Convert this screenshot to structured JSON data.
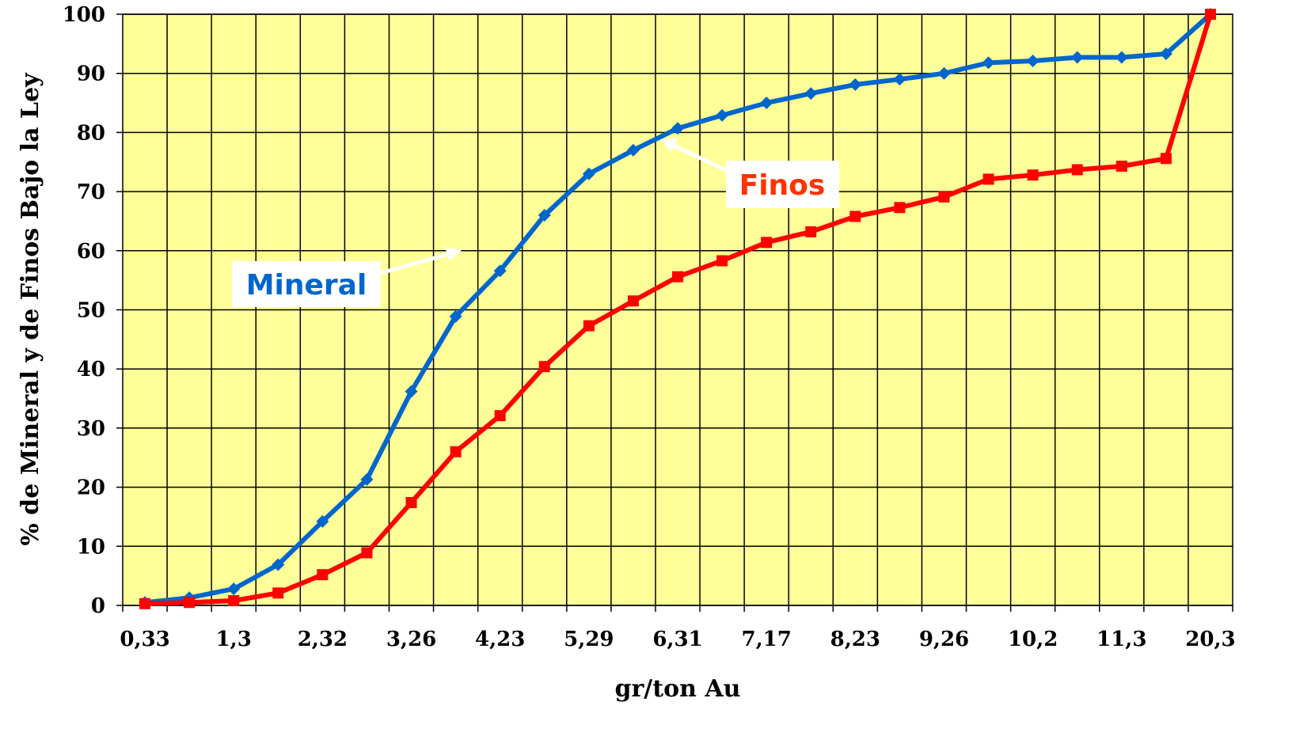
{
  "chart_data": {
    "type": "line",
    "xlabel": "gr/ton Au",
    "ylabel": "% de Mineral y de Finos Bajo la Ley",
    "ylim": [
      0,
      100
    ],
    "yticks": [
      0,
      10,
      20,
      30,
      40,
      50,
      60,
      70,
      80,
      90,
      100
    ],
    "x": [
      "0,33",
      "",
      "1,3",
      "",
      "2,32",
      "",
      "3,26",
      "",
      "4,23",
      "",
      "5,29",
      "",
      "6,31",
      "",
      "7,17",
      "",
      "8,23",
      "",
      "9,26",
      "",
      "10,2",
      "",
      "11,3",
      "",
      "20,3"
    ],
    "grid": true,
    "background": "#FFFF99",
    "series": [
      {
        "name": "Mineral",
        "color": "#0066CC",
        "marker": "diamond",
        "values": [
          0.5,
          1.3,
          2.8,
          6.9,
          14.2,
          21.3,
          36.2,
          48.9,
          56.6,
          66.0,
          73.0,
          77.0,
          80.7,
          82.9,
          85.0,
          86.6,
          88.1,
          89.0,
          90.0,
          91.8,
          92.1,
          92.7,
          92.7,
          93.3,
          100.0
        ]
      },
      {
        "name": "Finos",
        "color": "#FF0000",
        "marker": "square",
        "values": [
          0.3,
          0.5,
          0.8,
          2.1,
          5.2,
          8.9,
          17.4,
          26.0,
          32.1,
          40.4,
          47.3,
          51.5,
          55.6,
          58.3,
          61.4,
          63.2,
          65.8,
          67.3,
          69.1,
          72.1,
          72.8,
          73.7,
          74.3,
          75.6,
          100.0
        ]
      }
    ],
    "annotations": [
      {
        "text": "Mineral",
        "color": "#0066CC",
        "series": "Mineral"
      },
      {
        "text": "Finos",
        "color": "#FF3300",
        "series": "Finos"
      }
    ]
  }
}
